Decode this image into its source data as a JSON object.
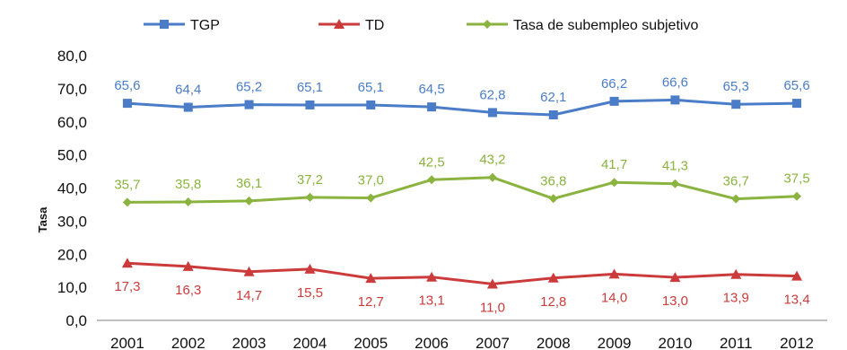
{
  "chart_data": {
    "type": "line",
    "title": "",
    "xlabel": "",
    "ylabel": "Tasa",
    "ylim": [
      0,
      80
    ],
    "y_ticks": [
      "0,0",
      "10,0",
      "20,0",
      "30,0",
      "40,0",
      "50,0",
      "60,0",
      "70,0",
      "80,0"
    ],
    "grid": false,
    "legend_position": "top",
    "categories": [
      "2001",
      "2002",
      "2003",
      "2004",
      "2005",
      "2006",
      "2007",
      "2008",
      "2009",
      "2010",
      "2011",
      "2012"
    ],
    "series": [
      {
        "name": "TGP",
        "color": "#4a7cc7",
        "marker": "square",
        "values": [
          65.6,
          64.4,
          65.2,
          65.1,
          65.1,
          64.5,
          62.8,
          62.1,
          66.2,
          66.6,
          65.3,
          65.6
        ],
        "labels": [
          "65,6",
          "64,4",
          "65,2",
          "65,1",
          "65,1",
          "64,5",
          "62,8",
          "62,1",
          "66,2",
          "66,6",
          "65,3",
          "65,6"
        ]
      },
      {
        "name": "TD",
        "color": "#cc3b3b",
        "marker": "triangle",
        "values": [
          17.3,
          16.3,
          14.7,
          15.5,
          12.7,
          13.1,
          11.0,
          12.8,
          14.0,
          13.0,
          13.9,
          13.4
        ],
        "labels": [
          "17,3",
          "16,3",
          "14,7",
          "15,5",
          "12,7",
          "13,1",
          "11,0",
          "12,8",
          "14,0",
          "13,0",
          "13,9",
          "13,4"
        ]
      },
      {
        "name": "Tasa de subempleo subjetivo",
        "color": "#8ab33f",
        "marker": "diamond",
        "values": [
          35.7,
          35.8,
          36.1,
          37.2,
          37.0,
          42.5,
          43.2,
          36.8,
          41.7,
          41.3,
          36.7,
          37.5
        ],
        "labels": [
          "35,7",
          "35,8",
          "36,1",
          "37,2",
          "37,0",
          "42,5",
          "43,2",
          "36,8",
          "41,7",
          "41,3",
          "36,7",
          "37,5"
        ]
      }
    ]
  }
}
